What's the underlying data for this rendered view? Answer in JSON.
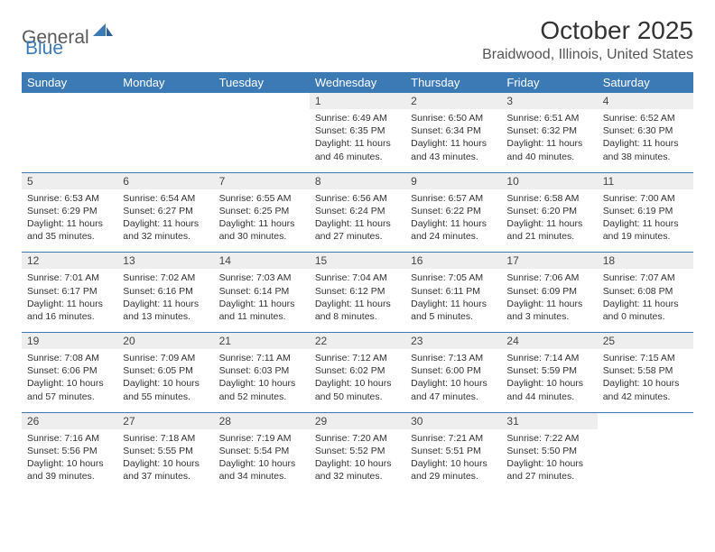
{
  "brand": {
    "part1": "General",
    "part2": "Blue"
  },
  "title": "October 2025",
  "location": "Braidwood, Illinois, United States",
  "colors": {
    "header_bg": "#3b7ab5",
    "header_text": "#ffffff",
    "daynum_bg": "#eeeeee",
    "rule": "#3b7ab5",
    "text": "#333333"
  },
  "day_names": [
    "Sunday",
    "Monday",
    "Tuesday",
    "Wednesday",
    "Thursday",
    "Friday",
    "Saturday"
  ],
  "weeks": [
    [
      null,
      null,
      null,
      {
        "n": "1",
        "sr": "6:49 AM",
        "ss": "6:35 PM",
        "dl": "11 hours and 46 minutes."
      },
      {
        "n": "2",
        "sr": "6:50 AM",
        "ss": "6:34 PM",
        "dl": "11 hours and 43 minutes."
      },
      {
        "n": "3",
        "sr": "6:51 AM",
        "ss": "6:32 PM",
        "dl": "11 hours and 40 minutes."
      },
      {
        "n": "4",
        "sr": "6:52 AM",
        "ss": "6:30 PM",
        "dl": "11 hours and 38 minutes."
      }
    ],
    [
      {
        "n": "5",
        "sr": "6:53 AM",
        "ss": "6:29 PM",
        "dl": "11 hours and 35 minutes."
      },
      {
        "n": "6",
        "sr": "6:54 AM",
        "ss": "6:27 PM",
        "dl": "11 hours and 32 minutes."
      },
      {
        "n": "7",
        "sr": "6:55 AM",
        "ss": "6:25 PM",
        "dl": "11 hours and 30 minutes."
      },
      {
        "n": "8",
        "sr": "6:56 AM",
        "ss": "6:24 PM",
        "dl": "11 hours and 27 minutes."
      },
      {
        "n": "9",
        "sr": "6:57 AM",
        "ss": "6:22 PM",
        "dl": "11 hours and 24 minutes."
      },
      {
        "n": "10",
        "sr": "6:58 AM",
        "ss": "6:20 PM",
        "dl": "11 hours and 21 minutes."
      },
      {
        "n": "11",
        "sr": "7:00 AM",
        "ss": "6:19 PM",
        "dl": "11 hours and 19 minutes."
      }
    ],
    [
      {
        "n": "12",
        "sr": "7:01 AM",
        "ss": "6:17 PM",
        "dl": "11 hours and 16 minutes."
      },
      {
        "n": "13",
        "sr": "7:02 AM",
        "ss": "6:16 PM",
        "dl": "11 hours and 13 minutes."
      },
      {
        "n": "14",
        "sr": "7:03 AM",
        "ss": "6:14 PM",
        "dl": "11 hours and 11 minutes."
      },
      {
        "n": "15",
        "sr": "7:04 AM",
        "ss": "6:12 PM",
        "dl": "11 hours and 8 minutes."
      },
      {
        "n": "16",
        "sr": "7:05 AM",
        "ss": "6:11 PM",
        "dl": "11 hours and 5 minutes."
      },
      {
        "n": "17",
        "sr": "7:06 AM",
        "ss": "6:09 PM",
        "dl": "11 hours and 3 minutes."
      },
      {
        "n": "18",
        "sr": "7:07 AM",
        "ss": "6:08 PM",
        "dl": "11 hours and 0 minutes."
      }
    ],
    [
      {
        "n": "19",
        "sr": "7:08 AM",
        "ss": "6:06 PM",
        "dl": "10 hours and 57 minutes."
      },
      {
        "n": "20",
        "sr": "7:09 AM",
        "ss": "6:05 PM",
        "dl": "10 hours and 55 minutes."
      },
      {
        "n": "21",
        "sr": "7:11 AM",
        "ss": "6:03 PM",
        "dl": "10 hours and 52 minutes."
      },
      {
        "n": "22",
        "sr": "7:12 AM",
        "ss": "6:02 PM",
        "dl": "10 hours and 50 minutes."
      },
      {
        "n": "23",
        "sr": "7:13 AM",
        "ss": "6:00 PM",
        "dl": "10 hours and 47 minutes."
      },
      {
        "n": "24",
        "sr": "7:14 AM",
        "ss": "5:59 PM",
        "dl": "10 hours and 44 minutes."
      },
      {
        "n": "25",
        "sr": "7:15 AM",
        "ss": "5:58 PM",
        "dl": "10 hours and 42 minutes."
      }
    ],
    [
      {
        "n": "26",
        "sr": "7:16 AM",
        "ss": "5:56 PM",
        "dl": "10 hours and 39 minutes."
      },
      {
        "n": "27",
        "sr": "7:18 AM",
        "ss": "5:55 PM",
        "dl": "10 hours and 37 minutes."
      },
      {
        "n": "28",
        "sr": "7:19 AM",
        "ss": "5:54 PM",
        "dl": "10 hours and 34 minutes."
      },
      {
        "n": "29",
        "sr": "7:20 AM",
        "ss": "5:52 PM",
        "dl": "10 hours and 32 minutes."
      },
      {
        "n": "30",
        "sr": "7:21 AM",
        "ss": "5:51 PM",
        "dl": "10 hours and 29 minutes."
      },
      {
        "n": "31",
        "sr": "7:22 AM",
        "ss": "5:50 PM",
        "dl": "10 hours and 27 minutes."
      },
      null
    ]
  ],
  "labels": {
    "sunrise": "Sunrise:",
    "sunset": "Sunset:",
    "daylight": "Daylight:"
  }
}
